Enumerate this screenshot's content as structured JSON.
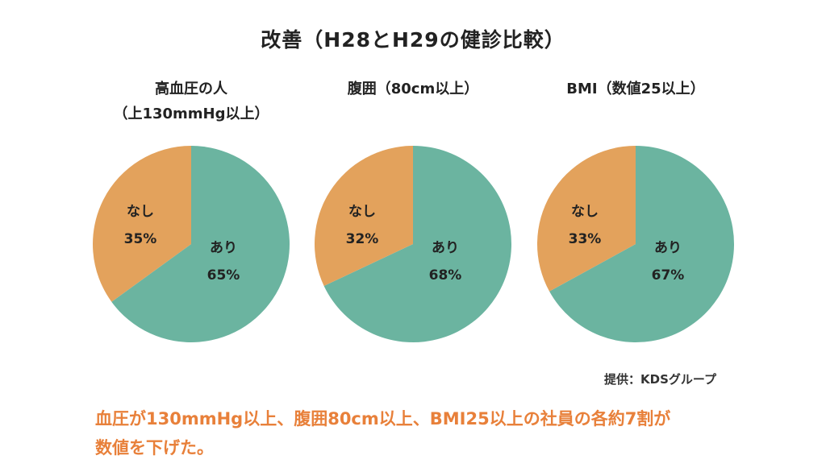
{
  "header": {
    "title": "改善（H28とH29の健診比較）"
  },
  "chart_data": [
    {
      "type": "pie",
      "title": "高血圧の人\n（上130mmHg以上）",
      "title_lines": [
        "高血圧の人",
        "（上130mmHg以上）"
      ],
      "slices": [
        {
          "label": "あり",
          "value": 65,
          "value_label": "65%",
          "color": "#6bb4a0"
        },
        {
          "label": "なし",
          "value": 35,
          "value_label": "35%",
          "color": "#e3a25c"
        }
      ]
    },
    {
      "type": "pie",
      "title": "腹囲（80cm以上）",
      "title_lines": [
        "腹囲（80cm以上）"
      ],
      "slices": [
        {
          "label": "あり",
          "value": 68,
          "value_label": "68%",
          "color": "#6bb4a0"
        },
        {
          "label": "なし",
          "value": 32,
          "value_label": "32%",
          "color": "#e3a25c"
        }
      ]
    },
    {
      "type": "pie",
      "title": "BMI（数値25以上）",
      "title_lines": [
        "BMI（数値25以上）"
      ],
      "slices": [
        {
          "label": "あり",
          "value": 67,
          "value_label": "67%",
          "color": "#6bb4a0"
        },
        {
          "label": "なし",
          "value": 33,
          "value_label": "33%",
          "color": "#e3a25c"
        }
      ]
    }
  ],
  "credit": "提供：KDSグループ",
  "caption": {
    "line1": "血圧が130mmHg以上、腹囲80cm以上、BMI25以上の社員の各約7割が",
    "line2": "数値を下げた。"
  }
}
